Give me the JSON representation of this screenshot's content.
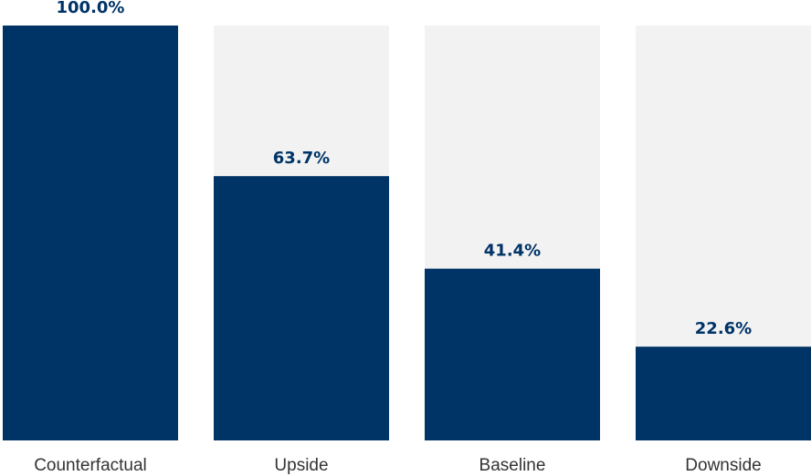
{
  "chart_data": {
    "type": "bar",
    "categories": [
      "Counterfactual",
      "Upside",
      "Baseline",
      "Downside"
    ],
    "values": [
      100.0,
      63.7,
      41.4,
      22.6
    ],
    "value_labels": [
      "100.0%",
      "63.7%",
      "41.4%",
      "22.6%"
    ],
    "ylim": [
      0,
      100
    ],
    "title": "",
    "xlabel": "",
    "ylabel": "",
    "grid": false,
    "legend": "none",
    "colors": {
      "bar": "#003366",
      "track": "#f2f2f2",
      "value_label": "#003366",
      "category_label": "#333333"
    }
  }
}
